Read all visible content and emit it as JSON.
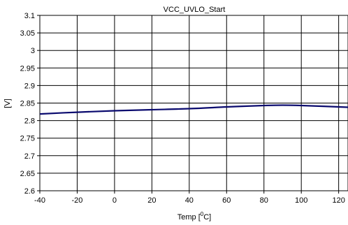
{
  "chart_data": {
    "type": "line",
    "title": "VCC_UVLO_Start",
    "xlabel_main": "Temp [",
    "xlabel_sup": "0",
    "xlabel_tail": "C]",
    "ylabel": "[V]",
    "xlim": [
      -40,
      125
    ],
    "ylim": [
      2.6,
      3.1
    ],
    "x_ticks": [
      -40,
      -20,
      0,
      20,
      40,
      60,
      80,
      100,
      120
    ],
    "x_tick_labels": [
      "-40",
      "-20",
      "0",
      "20",
      "40",
      "60",
      "80",
      "100",
      "120"
    ],
    "y_ticks": [
      2.6,
      2.65,
      2.7,
      2.75,
      2.8,
      2.85,
      2.9,
      2.95,
      3.0,
      3.05,
      3.1
    ],
    "y_tick_labels": [
      "2.6",
      "2.65",
      "2.7",
      "2.75",
      "2.8",
      "2.85",
      "2.9",
      "2.95",
      "3",
      "3.05",
      "3.1"
    ],
    "grid": true,
    "line_color": "#0a0a6e",
    "series": [
      {
        "x": [
          -40,
          -20,
          0,
          20,
          40,
          60,
          80,
          90,
          100,
          125
        ],
        "values": [
          2.819,
          2.824,
          2.828,
          2.831,
          2.834,
          2.839,
          2.843,
          2.844,
          2.843,
          2.838
        ]
      }
    ]
  }
}
